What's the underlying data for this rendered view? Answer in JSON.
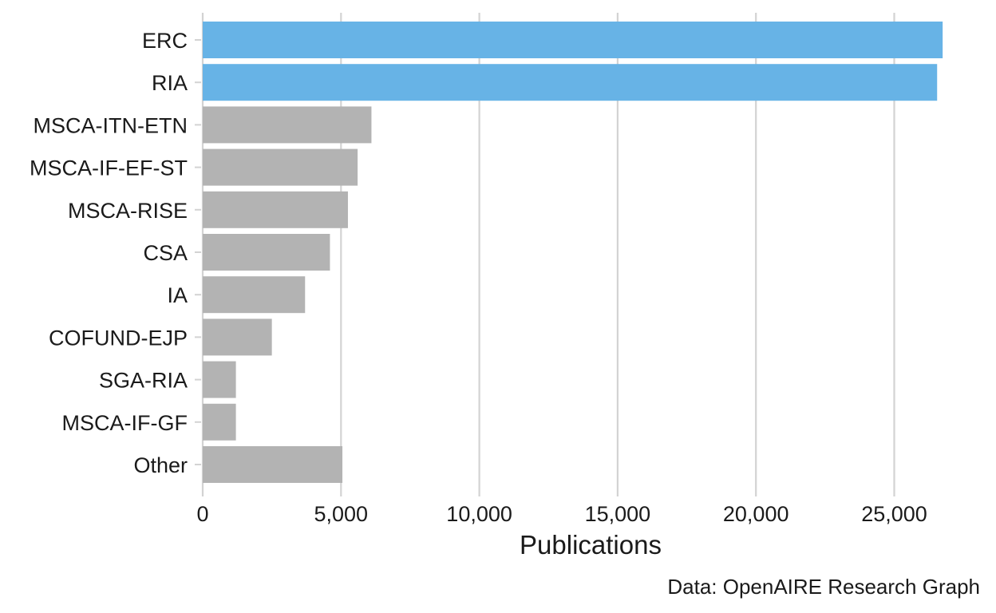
{
  "chart_data": {
    "type": "bar",
    "orientation": "horizontal",
    "categories": [
      "ERC",
      "RIA",
      "MSCA-ITN-ETN",
      "MSCA-IF-EF-ST",
      "MSCA-RISE",
      "CSA",
      "IA",
      "COFUND-EJP",
      "SGA-RIA",
      "MSCA-IF-GF",
      "Other"
    ],
    "values": [
      26750,
      26550,
      6100,
      5600,
      5250,
      4600,
      3700,
      2500,
      1200,
      1200,
      5050
    ],
    "highlighted_categories": [
      "ERC",
      "RIA"
    ],
    "xlabel": "Publications",
    "ylabel": "",
    "xlim": [
      0,
      27500
    ],
    "xticks": [
      0,
      5000,
      10000,
      15000,
      20000,
      25000
    ],
    "xtick_labels": [
      "0",
      "5,000",
      "10,000",
      "15,000",
      "20,000",
      "25,000"
    ],
    "grid": "vertical",
    "caption": "Data: OpenAIRE Research Graph",
    "colors": {
      "highlight": "#67b3e6",
      "default": "#b3b3b3",
      "grid": "#d3d3d3",
      "text": "#1a1a1a"
    }
  }
}
